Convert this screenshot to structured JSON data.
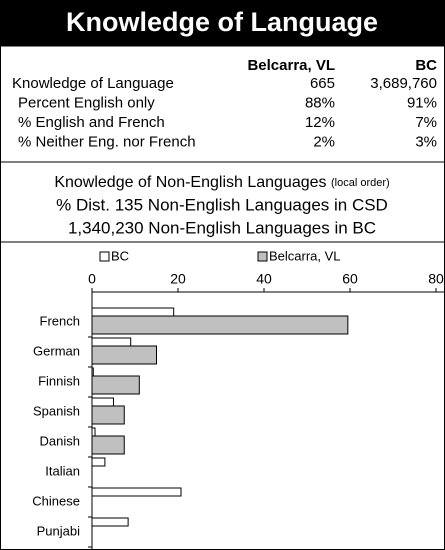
{
  "header": {
    "title": "Knowledge of Language"
  },
  "table": {
    "columns": [
      "Belcarra, VL",
      "BC"
    ],
    "rows": [
      [
        "Knowledge of Language",
        "665",
        "3,689,760"
      ],
      [
        "Percent English only",
        "88%",
        "91%"
      ],
      [
        "% English and French",
        "12%",
        "7%"
      ],
      [
        "% Neither Eng. nor French",
        "2%",
        "3%"
      ]
    ]
  },
  "section": {
    "heading": "Knowledge of Non-English Languages",
    "heading_note": "(local order)",
    "lines": [
      "% Dist. 135 Non-English Languages in CSD",
      "1,340,230 Non-English Languages in BC"
    ]
  },
  "chart_data": {
    "type": "bar",
    "orientation": "horizontal",
    "categories": [
      "French",
      "German",
      "Finnish",
      "Spanish",
      "Danish",
      "Italian",
      "Chinese",
      "Punjabi"
    ],
    "series": [
      {
        "name": "BC",
        "color": "#ffffff",
        "values": [
          19,
          9,
          0.3,
          5,
          0.7,
          3,
          20.7,
          8.4
        ]
      },
      {
        "name": "Belcarra, VL",
        "color": "#c0c0c0",
        "values": [
          59.5,
          15,
          11,
          7.5,
          7.5,
          0,
          0,
          0
        ]
      }
    ],
    "xlim": [
      0,
      80
    ],
    "xticks": [
      0,
      20,
      40,
      60,
      80
    ]
  }
}
